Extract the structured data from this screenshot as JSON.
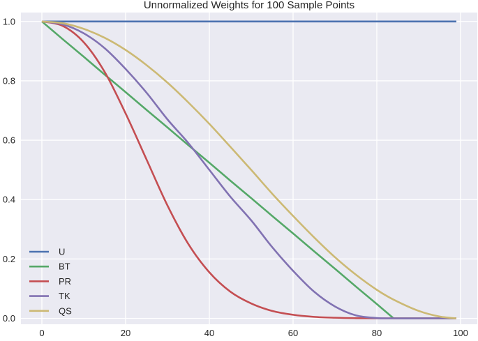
{
  "chart_data": {
    "type": "line",
    "title": "Unnormalized Weights for 100 Sample Points",
    "xlabel": "",
    "ylabel": "",
    "xlim": [
      -5,
      104
    ],
    "ylim": [
      -0.02,
      1.03
    ],
    "xticks": [
      "0",
      "20",
      "40",
      "60",
      "80",
      "100"
    ],
    "yticks": [
      "0.0",
      "0.2",
      "0.4",
      "0.6",
      "0.8",
      "1.0"
    ],
    "grid": true,
    "legend_position": "lower-left",
    "x": [
      0,
      5,
      10,
      15,
      20,
      25,
      30,
      35,
      40,
      45,
      50,
      55,
      60,
      65,
      70,
      75,
      80,
      84,
      90,
      95,
      99
    ],
    "series": [
      {
        "name": "U",
        "color": "#4c72b0",
        "values": [
          1.0,
          1.0,
          1.0,
          1.0,
          1.0,
          1.0,
          1.0,
          1.0,
          1.0,
          1.0,
          1.0,
          1.0,
          1.0,
          1.0,
          1.0,
          1.0,
          1.0,
          1.0,
          1.0,
          1.0,
          1.0
        ]
      },
      {
        "name": "BT",
        "color": "#55a868",
        "values": [
          1.0,
          0.94,
          0.881,
          0.821,
          0.762,
          0.702,
          0.643,
          0.583,
          0.524,
          0.464,
          0.405,
          0.345,
          0.286,
          0.226,
          0.167,
          0.107,
          0.048,
          0.0,
          0.0,
          0.0,
          0.0
        ]
      },
      {
        "name": "PR",
        "color": "#c44e52",
        "values": [
          1.0,
          0.985,
          0.93,
          0.83,
          0.69,
          0.535,
          0.38,
          0.25,
          0.155,
          0.09,
          0.05,
          0.025,
          0.012,
          0.005,
          0.002,
          0.0005,
          0.0,
          0.0,
          0.0,
          0.0,
          0.0
        ]
      },
      {
        "name": "TK",
        "color": "#8172b2",
        "values": [
          1.0,
          0.99,
          0.96,
          0.91,
          0.84,
          0.76,
          0.67,
          0.59,
          0.5,
          0.41,
          0.33,
          0.24,
          0.16,
          0.09,
          0.04,
          0.01,
          0.001,
          0.0,
          0.0,
          0.0,
          0.0
        ]
      },
      {
        "name": "QS",
        "color": "#ccb974",
        "values": [
          1.0,
          0.994,
          0.975,
          0.945,
          0.904,
          0.853,
          0.794,
          0.727,
          0.655,
          0.578,
          0.5,
          0.42,
          0.345,
          0.273,
          0.206,
          0.147,
          0.096,
          0.063,
          0.025,
          0.006,
          0.0
        ]
      }
    ]
  }
}
